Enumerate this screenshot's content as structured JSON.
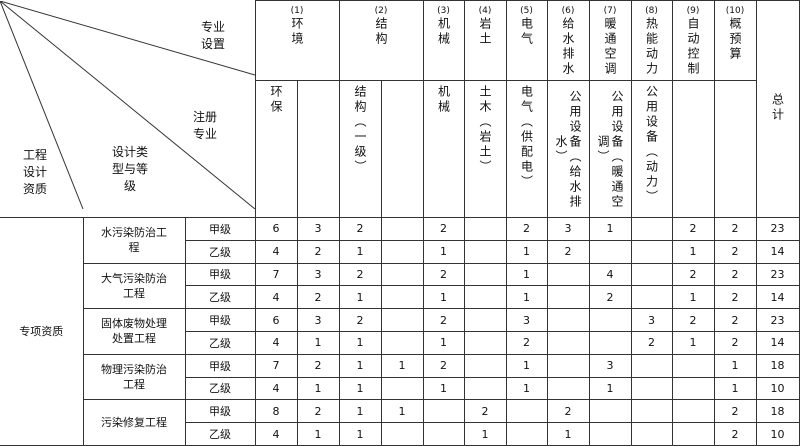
{
  "corner": {
    "specialty_setting": "专业设置",
    "registered_specialty": "注册专业",
    "design_type_grade": "设计类型与等级",
    "qualification": "工程设计资质"
  },
  "groups": [
    {
      "num": "(1)",
      "name": "环境"
    },
    {
      "num": "(2)",
      "name": "结构"
    },
    {
      "num": "(3)",
      "name": "机械"
    },
    {
      "num": "(4)",
      "name": "岩土"
    },
    {
      "num": "(5)",
      "name": "电气"
    },
    {
      "num": "(6)",
      "name": "给水排水"
    },
    {
      "num": "(7)",
      "name": "暖通空调"
    },
    {
      "num": "(8)",
      "name": "热能动力"
    },
    {
      "num": "(9)",
      "name": "自动控制"
    },
    {
      "num": "(10)",
      "name": "概预算"
    }
  ],
  "subheaders": [
    "环保",
    "",
    "结构（一级）",
    "",
    "机械",
    "土木（岩土）",
    "电气（供配电）",
    "公用设备（给水排水）",
    "公用设备（暖通空调）",
    "公用设备（动力）",
    "",
    ""
  ],
  "total_label": "总计",
  "category": "专项资质",
  "projects": [
    {
      "name": "水污染防治工程",
      "rows": [
        {
          "grade": "甲级",
          "values": [
            "6",
            "3",
            "2",
            "",
            "2",
            "",
            "2",
            "3",
            "1",
            "",
            "2",
            "2"
          ],
          "total": "23"
        },
        {
          "grade": "乙级",
          "values": [
            "4",
            "2",
            "1",
            "",
            "1",
            "",
            "1",
            "2",
            "",
            "",
            "1",
            "2"
          ],
          "total": "14"
        }
      ]
    },
    {
      "name": "大气污染防治工程",
      "rows": [
        {
          "grade": "甲级",
          "values": [
            "7",
            "3",
            "2",
            "",
            "2",
            "",
            "1",
            "",
            "4",
            "",
            "2",
            "2"
          ],
          "total": "23"
        },
        {
          "grade": "乙级",
          "values": [
            "4",
            "2",
            "1",
            "",
            "1",
            "",
            "1",
            "",
            "2",
            "",
            "1",
            "2"
          ],
          "total": "14"
        }
      ]
    },
    {
      "name": "固体废物处理处置工程",
      "rows": [
        {
          "grade": "甲级",
          "values": [
            "6",
            "3",
            "2",
            "",
            "2",
            "",
            "3",
            "",
            "",
            "3",
            "2",
            "2"
          ],
          "total": "23"
        },
        {
          "grade": "乙级",
          "values": [
            "4",
            "1",
            "1",
            "",
            "1",
            "",
            "2",
            "",
            "",
            "2",
            "1",
            "2"
          ],
          "total": "14"
        }
      ]
    },
    {
      "name": "物理污染防治工程",
      "rows": [
        {
          "grade": "甲级",
          "values": [
            "7",
            "2",
            "1",
            "1",
            "2",
            "",
            "1",
            "",
            "3",
            "",
            "",
            "1"
          ],
          "total": "18"
        },
        {
          "grade": "乙级",
          "values": [
            "4",
            "1",
            "1",
            "",
            "1",
            "",
            "1",
            "",
            "1",
            "",
            "",
            "1"
          ],
          "total": "10"
        }
      ]
    },
    {
      "name": "污染修复工程",
      "rows": [
        {
          "grade": "甲级",
          "values": [
            "8",
            "2",
            "1",
            "1",
            "",
            "2",
            "",
            "2",
            "",
            "",
            "",
            "2"
          ],
          "total": "18"
        },
        {
          "grade": "乙级",
          "values": [
            "4",
            "1",
            "1",
            "",
            "",
            "1",
            "",
            "1",
            "",
            "",
            "",
            "2"
          ],
          "total": "10"
        }
      ]
    }
  ]
}
